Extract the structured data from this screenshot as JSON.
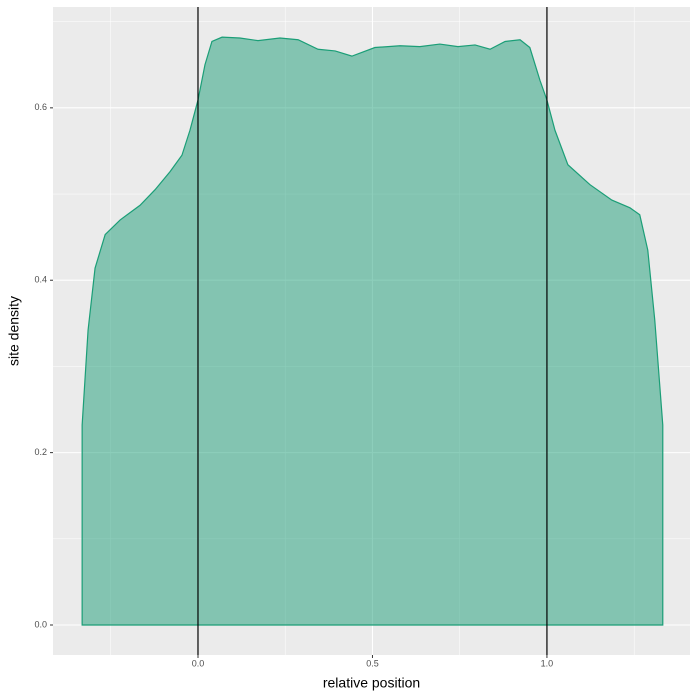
{
  "chart_data": {
    "type": "area",
    "x_label": "relative position",
    "y_label": "site density",
    "x": [
      -0.332,
      -0.315,
      -0.295,
      -0.266,
      -0.223,
      -0.166,
      -0.123,
      -0.08,
      -0.046,
      -0.023,
      0.0,
      0.02,
      0.04,
      0.069,
      0.12,
      0.172,
      0.235,
      0.287,
      0.344,
      0.393,
      0.441,
      0.507,
      0.579,
      0.636,
      0.693,
      0.745,
      0.794,
      0.837,
      0.88,
      0.923,
      0.951,
      0.98,
      1.0,
      1.023,
      1.06,
      1.123,
      1.186,
      1.238,
      1.266,
      1.289,
      1.309,
      1.332
    ],
    "values": [
      0.232,
      0.342,
      0.414,
      0.453,
      0.47,
      0.487,
      0.505,
      0.526,
      0.545,
      0.574,
      0.609,
      0.65,
      0.677,
      0.682,
      0.681,
      0.678,
      0.681,
      0.679,
      0.668,
      0.666,
      0.66,
      0.67,
      0.672,
      0.671,
      0.674,
      0.671,
      0.673,
      0.668,
      0.677,
      0.679,
      0.67,
      0.632,
      0.609,
      0.574,
      0.534,
      0.511,
      0.493,
      0.484,
      0.476,
      0.435,
      0.354,
      0.232
    ],
    "color": "#1b9e77",
    "xlim": [
      -0.4155,
      1.41
    ],
    "ylim": [
      -0.0348,
      0.717
    ],
    "xticks": [
      {
        "value": 0,
        "label": "0.0"
      },
      0.5,
      {
        "value": 1,
        "label": "1.0"
      }
    ],
    "yticks": [
      {
        "value": 0,
        "label": "0.0"
      },
      0.2,
      0.4,
      0.6
    ],
    "minor_xticks": [
      -0.25,
      0.25,
      0.75,
      1.25
    ],
    "minor_yticks": [
      0.1,
      0.3,
      0.5,
      0.7
    ],
    "vlines": [
      0,
      1
    ],
    "grid": true
  }
}
